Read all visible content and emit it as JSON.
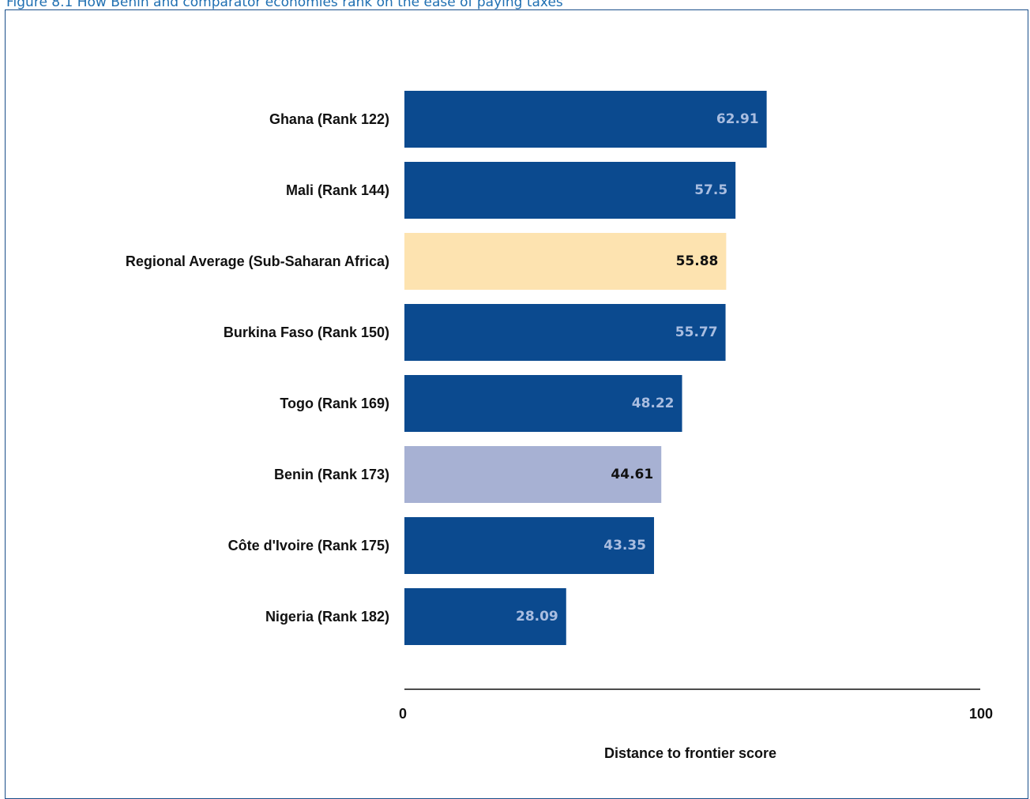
{
  "figure_title": "Figure 8.1 How Benin and comparator economies rank on the ease of paying taxes",
  "colors": {
    "default_bar": "#0b4a8f",
    "regional_bar": "#fde3b0",
    "highlight_bar": "#a7b1d3",
    "title": "#1f6fb2",
    "frame": "#1a4f8a",
    "default_value_text": "#a9bde0",
    "highlight_value_text": "#111111"
  },
  "chart_data": {
    "type": "bar",
    "orientation": "horizontal",
    "categories": [
      "Ghana (Rank 122)",
      "Mali (Rank 144)",
      "Regional Average (Sub-Saharan Africa)",
      "Burkina Faso (Rank 150)",
      "Togo (Rank 169)",
      "Benin (Rank 173)",
      "Côte d'Ivoire (Rank 175)",
      "Nigeria (Rank 182)"
    ],
    "values": [
      62.91,
      57.5,
      55.88,
      55.77,
      48.22,
      44.61,
      43.35,
      28.09
    ],
    "value_labels": [
      "62.91",
      "57.5",
      "55.88",
      "55.77",
      "48.22",
      "44.61",
      "43.35",
      "28.09"
    ],
    "bar_styles": [
      "default",
      "default",
      "regional",
      "default",
      "default",
      "highlight",
      "default",
      "default"
    ],
    "xlabel": "Distance to frontier score",
    "xlim": [
      0,
      100
    ],
    "xticks": [
      "0",
      "100"
    ],
    "grid": false
  }
}
